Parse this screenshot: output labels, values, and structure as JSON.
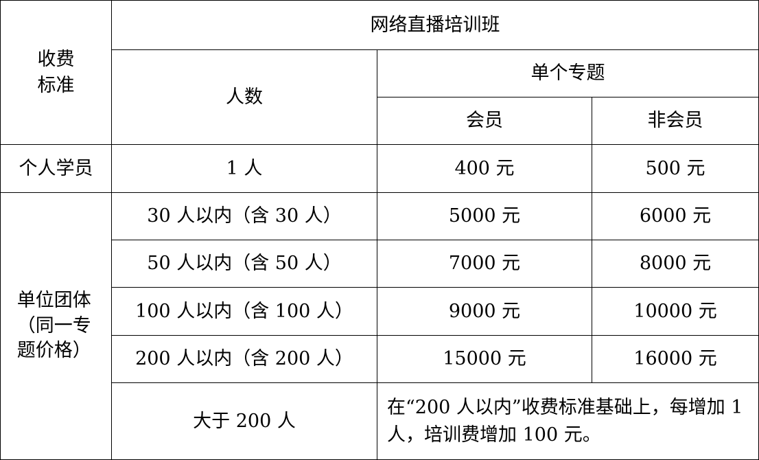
{
  "table": {
    "corner": "收费标准",
    "title": "网络直播培训班",
    "people_header": "人数",
    "topic_header": "单个专题",
    "member_header": "会员",
    "nonmember_header": "非会员",
    "individual": {
      "label": "个人学员",
      "count": "1 人",
      "member": "400 元",
      "nonmember": "500 元"
    },
    "group_label": "单位团体（同一专题价格）",
    "group_rows": [
      {
        "count": "30 人以内（含 30 人）",
        "member": "5000 元",
        "nonmember": "6000 元"
      },
      {
        "count": "50 人以内（含 50 人）",
        "member": "7000 元",
        "nonmember": "8000 元"
      },
      {
        "count": "100 人以内（含 100 人）",
        "member": "9000 元",
        "nonmember": "10000 元"
      },
      {
        "count": "200 人以内（含 200 人）",
        "member": "15000 元",
        "nonmember": "16000 元"
      }
    ],
    "over": {
      "count": "大于 200 人",
      "note": "在“200 人以内”收费标准基础上，每增加 1 人，培训费增加 100 元。"
    }
  }
}
